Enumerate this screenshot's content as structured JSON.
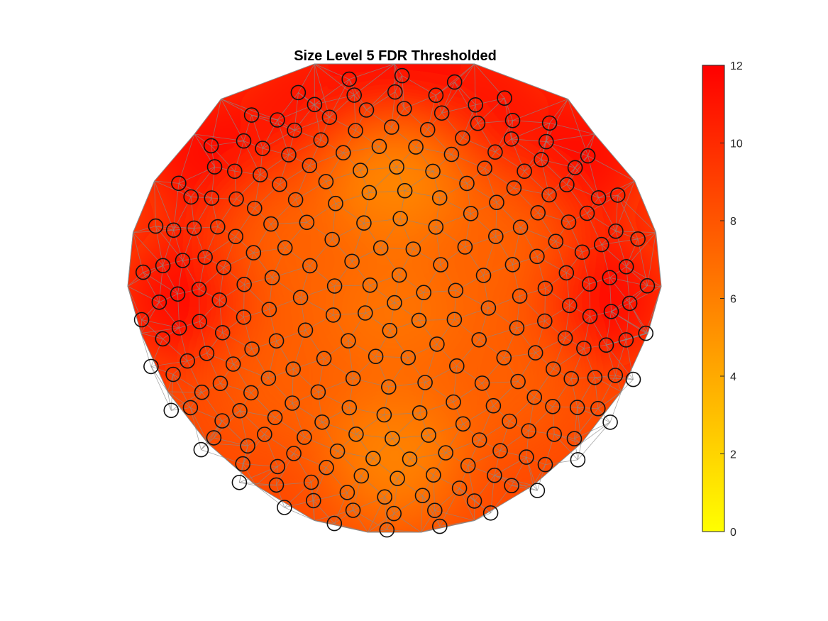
{
  "chart_data": {
    "type": "heatmap",
    "title": "Size Level 5 FDR Thresholded",
    "colormap": [
      "#ffff00",
      "#ff0000"
    ],
    "clim": [
      0,
      12
    ],
    "colorbar": {
      "location": "right",
      "ticks": [
        "0",
        "2",
        "4",
        "6",
        "8",
        "10",
        "12"
      ]
    },
    "background_value": 8.5,
    "hotspots": [
      {
        "x": 0.0,
        "y": 0.55,
        "value": 5.6
      },
      {
        "x": 0.0,
        "y": -0.05,
        "value": 6.6
      },
      {
        "x": 0.0,
        "y": -0.68,
        "value": 5.9
      },
      {
        "x": -0.38,
        "y": 0.2,
        "value": 7.4
      },
      {
        "x": 0.38,
        "y": 0.2,
        "value": 7.4
      },
      {
        "x": -0.4,
        "y": -0.35,
        "value": 7.6
      },
      {
        "x": 0.4,
        "y": -0.35,
        "value": 7.6
      },
      {
        "x": -0.8,
        "y": 0.0,
        "value": 11.6
      },
      {
        "x": 0.8,
        "y": 0.0,
        "value": 11.6
      },
      {
        "x": -0.72,
        "y": 0.62,
        "value": 11.2
      },
      {
        "x": 0.72,
        "y": 0.62,
        "value": 11.2
      },
      {
        "x": -0.35,
        "y": 0.85,
        "value": 11.0
      },
      {
        "x": 0.35,
        "y": 0.85,
        "value": 11.0
      },
      {
        "x": 0.0,
        "y": 1.0,
        "value": 11.2
      }
    ],
    "boundary": [
      [
        -0.65,
        0.85
      ],
      [
        -0.3,
        1.0
      ],
      [
        0.0,
        1.0
      ],
      [
        0.3,
        1.0
      ],
      [
        0.65,
        0.85
      ],
      [
        0.75,
        0.7
      ],
      [
        0.9,
        0.5
      ],
      [
        0.98,
        0.28
      ],
      [
        1.0,
        0.05
      ],
      [
        0.95,
        -0.15
      ],
      [
        0.85,
        -0.4
      ],
      [
        0.7,
        -0.62
      ],
      [
        0.52,
        -0.8
      ],
      [
        0.3,
        -0.95
      ],
      [
        0.1,
        -1.0
      ],
      [
        -0.1,
        -1.0
      ],
      [
        -0.3,
        -0.95
      ],
      [
        -0.52,
        -0.8
      ],
      [
        -0.7,
        -0.62
      ],
      [
        -0.85,
        -0.4
      ],
      [
        -0.95,
        -0.15
      ],
      [
        -1.0,
        0.05
      ],
      [
        -0.98,
        0.28
      ],
      [
        -0.9,
        0.5
      ],
      [
        -0.75,
        0.7
      ]
    ],
    "rings": [
      {
        "r": 0.0,
        "n": 1
      },
      {
        "r": 0.12,
        "n": 6
      },
      {
        "r": 0.24,
        "n": 12
      },
      {
        "r": 0.36,
        "n": 16
      },
      {
        "r": 0.48,
        "n": 22
      },
      {
        "r": 0.58,
        "n": 26
      },
      {
        "r": 0.67,
        "n": 30
      },
      {
        "r": 0.75,
        "n": 34
      },
      {
        "r": 0.83,
        "n": 36
      },
      {
        "r": 0.9,
        "n": 36
      },
      {
        "r": 0.97,
        "n": 30
      }
    ],
    "grid": false
  }
}
